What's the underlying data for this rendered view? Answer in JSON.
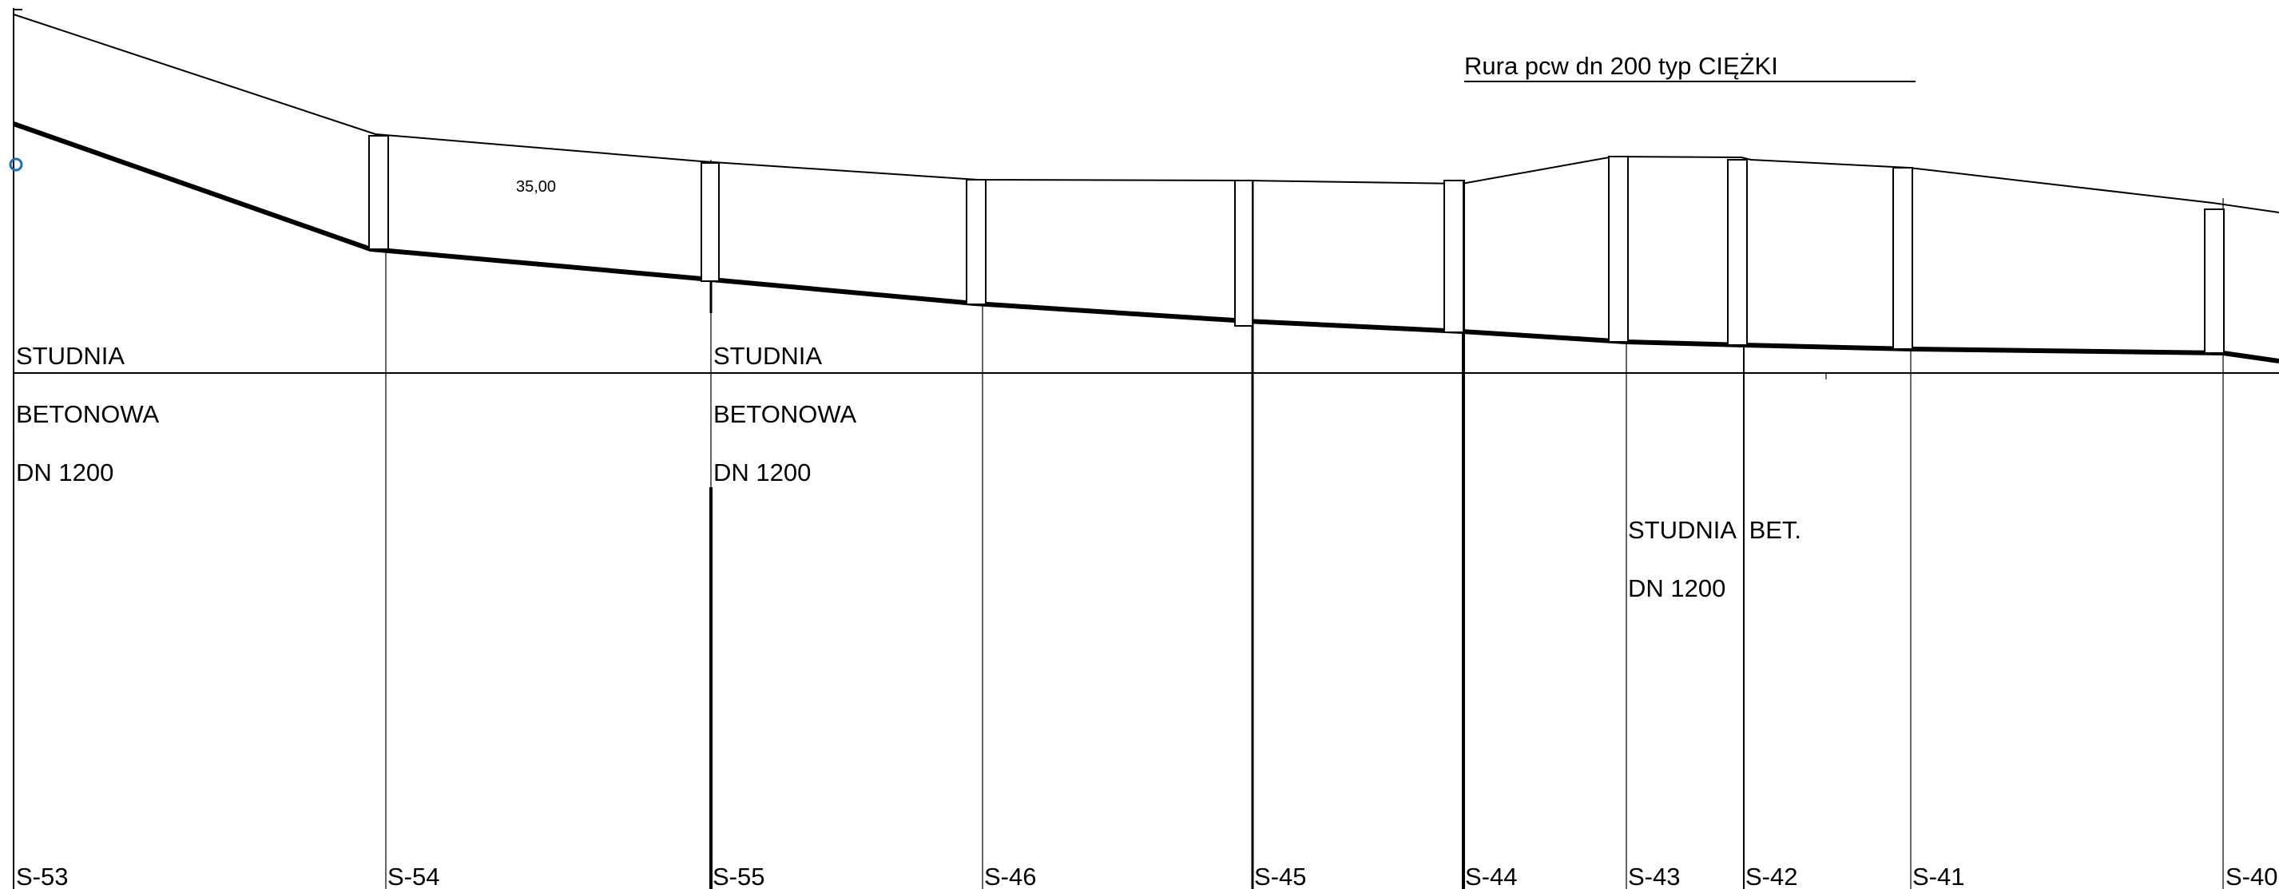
{
  "note": {
    "pipe": "Rura  pcw  dn 200  typ  CIĘŻKI",
    "length": "35,00"
  },
  "labels": {
    "well_left": [
      "STUDNIA",
      "BETONOWA",
      "DN 1200"
    ],
    "well_mid": [
      "STUDNIA",
      "BETONOWA",
      "DN 1200"
    ],
    "well_right": [
      "STUDNIA  BET.",
      "DN 1200"
    ]
  },
  "stations": [
    "S-53",
    "S-54",
    "S-55",
    "S-46",
    "S-45",
    "S-44",
    "S-43",
    "S-42",
    "S-41",
    "S-40"
  ]
}
